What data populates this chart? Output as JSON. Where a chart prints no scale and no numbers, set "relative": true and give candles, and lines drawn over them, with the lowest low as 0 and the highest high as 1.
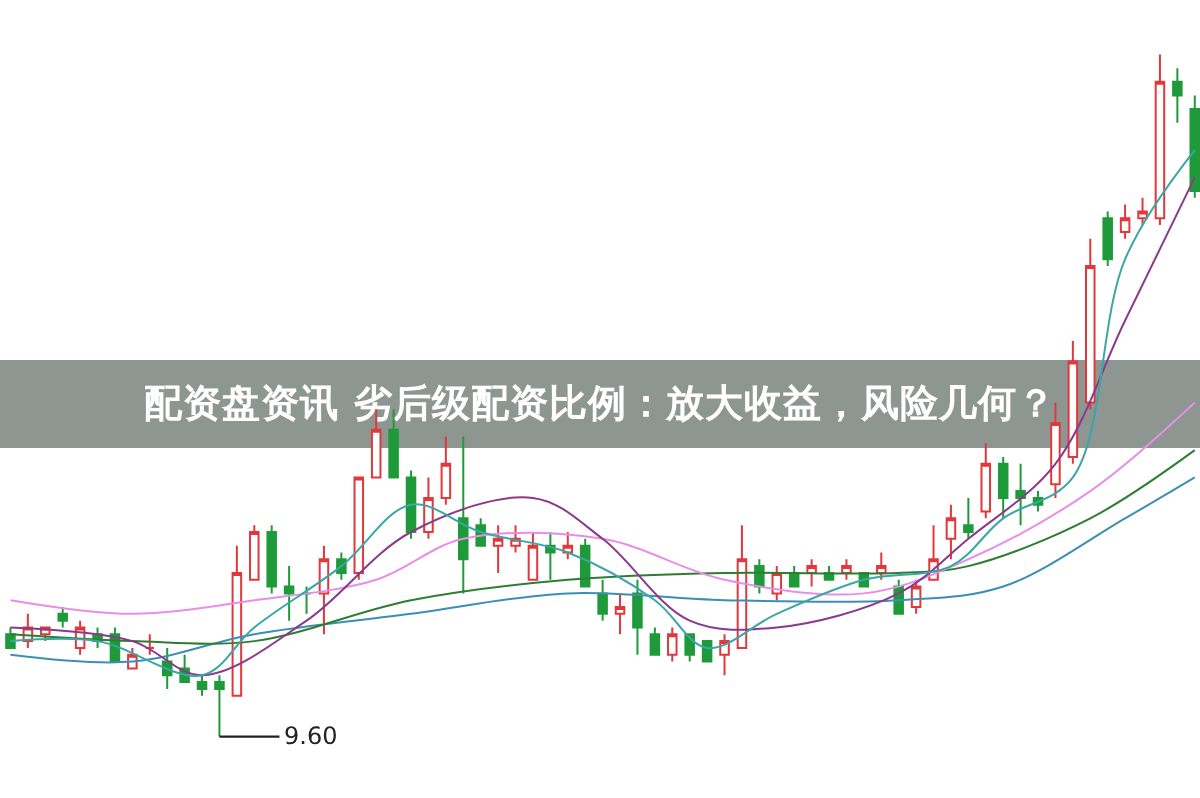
{
  "chart_data": {
    "type": "candlestick",
    "title": "配资盘资讯 劣后级配资比例：放大收益，风险几何？",
    "relative": true,
    "categories": [
      null,
      null,
      null,
      null,
      null,
      null,
      null,
      null,
      null,
      null,
      null,
      null,
      null,
      null,
      null,
      null,
      null,
      null,
      null,
      null,
      null,
      null,
      null,
      null,
      null,
      null,
      null,
      null,
      null,
      null,
      null,
      null,
      null,
      null,
      null,
      null,
      null,
      null,
      null,
      null,
      null,
      null,
      null,
      null,
      null,
      null,
      null,
      null,
      null,
      null,
      null,
      null,
      null,
      null,
      null,
      null,
      null,
      null,
      null,
      null,
      null,
      null,
      null,
      null,
      null,
      null,
      null,
      null,
      null
    ],
    "ohlc": [
      [
        0.15,
        0.16,
        0.13,
        0.13
      ],
      [
        0.14,
        0.18,
        0.13,
        0.16
      ],
      [
        0.15,
        0.16,
        0.14,
        0.16
      ],
      [
        0.18,
        0.19,
        0.16,
        0.17
      ],
      [
        0.13,
        0.17,
        0.12,
        0.16
      ],
      [
        0.15,
        0.16,
        0.13,
        0.14
      ],
      [
        0.15,
        0.16,
        0.11,
        0.11
      ],
      [
        0.1,
        0.13,
        0.1,
        0.12
      ],
      [
        0.13,
        0.15,
        0.12,
        0.13
      ],
      [
        0.11,
        0.13,
        0.07,
        0.09
      ],
      [
        0.1,
        0.12,
        0.08,
        0.08
      ],
      [
        0.08,
        0.09,
        0.06,
        0.07
      ],
      [
        0.08,
        0.09,
        0,
        0.07
      ],
      [
        0.06,
        0.28,
        0.06,
        0.24
      ],
      [
        0.23,
        0.31,
        0.23,
        0.3
      ],
      [
        0.3,
        0.31,
        0.21,
        0.22
      ],
      [
        0.22,
        0.25,
        0.17,
        0.21
      ],
      [
        0.21,
        0.22,
        0.18,
        0.21
      ],
      [
        0.21,
        0.28,
        0.15,
        0.26
      ],
      [
        0.26,
        0.27,
        0.23,
        0.24
      ],
      [
        0.24,
        0.38,
        0.23,
        0.38
      ],
      [
        0.38,
        0.48,
        0.38,
        0.45
      ],
      [
        0.45,
        0.48,
        0.38,
        0.38
      ],
      [
        0.38,
        0.39,
        0.29,
        0.3
      ],
      [
        0.3,
        0.38,
        0.29,
        0.35
      ],
      [
        0.35,
        0.44,
        0.34,
        0.4
      ],
      [
        0.32,
        0.44,
        0.21,
        0.26
      ],
      [
        0.31,
        0.32,
        0.28,
        0.28
      ],
      [
        0.28,
        0.31,
        0.24,
        0.29
      ],
      [
        0.28,
        0.31,
        0.27,
        0.29
      ],
      [
        0.23,
        0.3,
        0.23,
        0.28
      ],
      [
        0.28,
        0.3,
        0.23,
        0.27
      ],
      [
        0.27,
        0.3,
        0.26,
        0.28
      ],
      [
        0.28,
        0.29,
        0.22,
        0.22
      ],
      [
        0.21,
        0.23,
        0.17,
        0.18
      ],
      [
        0.18,
        0.21,
        0.15,
        0.19
      ],
      [
        0.21,
        0.23,
        0.12,
        0.16
      ],
      [
        0.15,
        0.16,
        0.12,
        0.12
      ],
      [
        0.12,
        0.16,
        0.11,
        0.15
      ],
      [
        0.15,
        0.15,
        0.11,
        0.12
      ],
      [
        0.14,
        0.14,
        0.11,
        0.11
      ],
      [
        0.12,
        0.15,
        0.09,
        0.14
      ],
      [
        0.13,
        0.31,
        0.13,
        0.26
      ],
      [
        0.25,
        0.26,
        0.21,
        0.22
      ],
      [
        0.21,
        0.25,
        0.2,
        0.24
      ],
      [
        0.24,
        0.25,
        0.22,
        0.22
      ],
      [
        0.24,
        0.26,
        0.22,
        0.25
      ],
      [
        0.24,
        0.25,
        0.23,
        0.23
      ],
      [
        0.24,
        0.26,
        0.23,
        0.25
      ],
      [
        0.24,
        0.24,
        0.22,
        0.22
      ],
      [
        0.24,
        0.27,
        0.23,
        0.25
      ],
      [
        0.22,
        0.23,
        0.18,
        0.18
      ],
      [
        0.19,
        0.23,
        0.18,
        0.22
      ],
      [
        0.23,
        0.31,
        0.23,
        0.26
      ],
      [
        0.29,
        0.34,
        0.26,
        0.32
      ],
      [
        0.31,
        0.35,
        0.29,
        0.3
      ],
      [
        0.33,
        0.43,
        0.32,
        0.4
      ],
      [
        0.4,
        0.41,
        0.32,
        0.35
      ],
      [
        0.36,
        0.4,
        0.31,
        0.35
      ],
      [
        0.35,
        0.36,
        0.33,
        0.34
      ],
      [
        0.37,
        0.49,
        0.35,
        0.46
      ],
      [
        0.41,
        0.58,
        0.4,
        0.55
      ],
      [
        0.49,
        0.73,
        0.48,
        0.69
      ],
      [
        0.76,
        0.77,
        0.69,
        0.7
      ],
      [
        0.74,
        0.78,
        0.73,
        0.76
      ],
      [
        0.76,
        0.79,
        0.75,
        0.77
      ],
      [
        0.76,
        1.0,
        0.75,
        0.96
      ],
      [
        0.96,
        0.98,
        0.9,
        0.94
      ],
      [
        0.92,
        0.94,
        0.79,
        0.8
      ]
    ],
    "series": [
      {
        "type": "line",
        "color": "#3c8fb4",
        "values": [
          0.12,
          null,
          null,
          null,
          null,
          null,
          null,
          0.11,
          null,
          null,
          null,
          null,
          null,
          null,
          0.15,
          null,
          null,
          null,
          null,
          null,
          null,
          null,
          null,
          0.18,
          null,
          null,
          null,
          null,
          null,
          null,
          null,
          null,
          0.21,
          null,
          null,
          null,
          null,
          null,
          null,
          null,
          null,
          0.2,
          null,
          null,
          null,
          null,
          null,
          null,
          null,
          null,
          null,
          0.2,
          null,
          null,
          null,
          null,
          null,
          0.22,
          null,
          null,
          null,
          null,
          null,
          null,
          0.32,
          null,
          null,
          null,
          0.38
        ]
      },
      {
        "type": "line",
        "color": "#2e7d32",
        "values": [
          0.15,
          null,
          null,
          null,
          null,
          null,
          null,
          0.14,
          null,
          null,
          null,
          null,
          null,
          null,
          0.14,
          null,
          null,
          null,
          null,
          null,
          null,
          null,
          null,
          0.2,
          null,
          null,
          null,
          null,
          null,
          null,
          null,
          null,
          0.23,
          null,
          null,
          null,
          null,
          null,
          null,
          null,
          null,
          0.24,
          null,
          null,
          null,
          null,
          null,
          null,
          null,
          null,
          null,
          0.24,
          null,
          null,
          null,
          0.25,
          null,
          null,
          null,
          null,
          null,
          null,
          0.32,
          null,
          null,
          null,
          null,
          null,
          0.42
        ]
      },
      {
        "type": "line",
        "color": "#e88ee8",
        "values": [
          0.2,
          null,
          null,
          null,
          null,
          null,
          null,
          0.18,
          null,
          null,
          null,
          null,
          null,
          null,
          0.2,
          null,
          null,
          null,
          null,
          null,
          null,
          0.23,
          null,
          null,
          null,
          null,
          0.29,
          null,
          null,
          null,
          null,
          null,
          null,
          null,
          0.29,
          null,
          null,
          null,
          null,
          null,
          null,
          0.23,
          null,
          null,
          null,
          null,
          null,
          null,
          null,
          0.21,
          null,
          null,
          null,
          null,
          null,
          0.26,
          null,
          null,
          null,
          null,
          null,
          null,
          0.36,
          null,
          null,
          null,
          null,
          null,
          0.49
        ]
      },
      {
        "type": "line",
        "color": "#8b3a8b",
        "values": [
          0.16,
          null,
          null,
          null,
          null,
          null,
          null,
          0.14,
          null,
          null,
          null,
          0.09,
          null,
          null,
          null,
          null,
          null,
          0.17,
          null,
          null,
          null,
          null,
          null,
          0.3,
          null,
          null,
          null,
          null,
          null,
          null,
          0.35,
          null,
          null,
          null,
          0.29,
          null,
          null,
          null,
          null,
          0.17,
          null,
          null,
          null,
          null,
          0.16,
          null,
          null,
          null,
          null,
          null,
          null,
          0.21,
          null,
          null,
          null,
          0.29,
          null,
          null,
          null,
          null,
          0.4,
          null,
          null,
          null,
          0.61,
          null,
          null,
          null,
          0.82
        ]
      },
      {
        "type": "line",
        "color": "#3aa6a6",
        "values": [
          0.14,
          null,
          null,
          null,
          null,
          0.14,
          null,
          null,
          null,
          null,
          null,
          0.09,
          null,
          null,
          0.16,
          null,
          null,
          null,
          null,
          0.25,
          null,
          null,
          null,
          0.34,
          null,
          null,
          null,
          0.3,
          null,
          null,
          null,
          null,
          0.27,
          null,
          null,
          null,
          null,
          0.2,
          null,
          null,
          0.13,
          null,
          null,
          null,
          0.18,
          null,
          null,
          null,
          null,
          0.23,
          null,
          null,
          null,
          null,
          0.25,
          null,
          null,
          0.32,
          null,
          null,
          null,
          0.38,
          null,
          null,
          0.7,
          null,
          null,
          null,
          0.86
        ]
      }
    ],
    "annotations": [
      "9.60"
    ]
  }
}
